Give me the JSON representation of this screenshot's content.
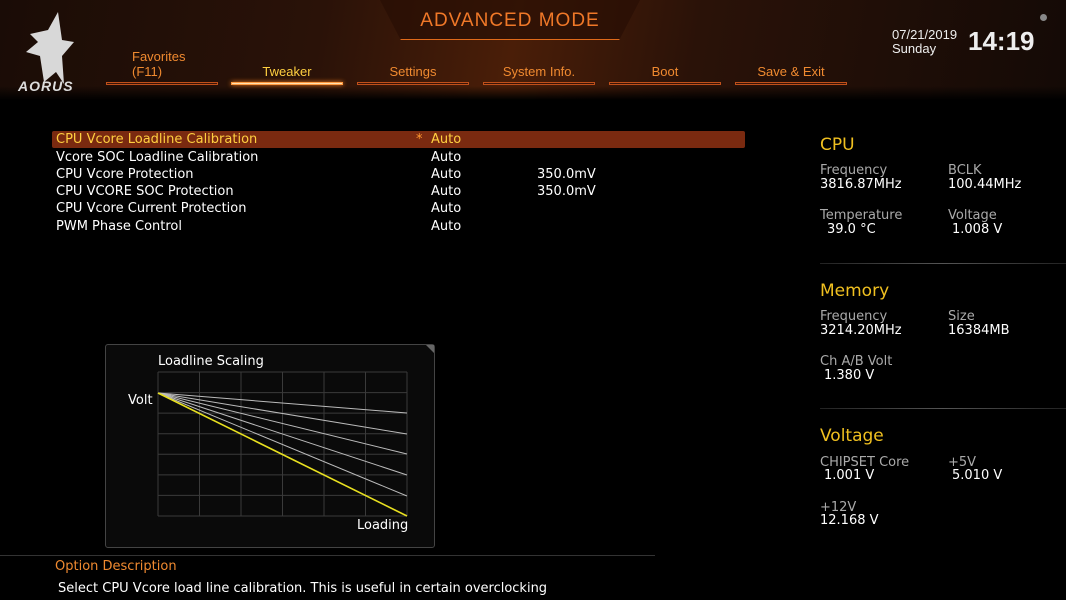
{
  "header": {
    "mode": "ADVANCED MODE",
    "logo": "AORUS",
    "date": "07/21/2019",
    "day": "Sunday",
    "time": "14:19"
  },
  "tabs": [
    {
      "label": "Favorites",
      "sub": "(F11)"
    },
    {
      "label": "Tweaker",
      "active": true
    },
    {
      "label": "Settings"
    },
    {
      "label": "System Info."
    },
    {
      "label": "Boot"
    },
    {
      "label": "Save & Exit"
    }
  ],
  "settings": [
    {
      "label": "CPU Vcore Loadline Calibration",
      "modified": "*",
      "value": "Auto",
      "extra": ""
    },
    {
      "label": "Vcore SOC Loadline Calibration",
      "modified": "",
      "value": "Auto",
      "extra": ""
    },
    {
      "label": "CPU Vcore Protection",
      "modified": "",
      "value": "Auto",
      "extra": "350.0mV"
    },
    {
      "label": "CPU VCORE SOC Protection",
      "modified": "",
      "value": "Auto",
      "extra": "350.0mV"
    },
    {
      "label": "CPU Vcore Current Protection",
      "modified": "",
      "value": "Auto",
      "extra": ""
    },
    {
      "label": "PWM Phase Control",
      "modified": "",
      "value": "Auto",
      "extra": ""
    }
  ],
  "graphic": {
    "title": "Loadline Scaling",
    "y_label": "Volt",
    "x_label": "Loading",
    "highlight_color": "#e8e020"
  },
  "monitor": {
    "cpu": {
      "title": "CPU",
      "frequency_label": "Frequency",
      "frequency": "3816.87MHz",
      "bclk_label": "BCLK",
      "bclk": "100.44MHz",
      "temperature_label": "Temperature",
      "temperature": "39.0 °C",
      "voltage_label": "Voltage",
      "voltage": "1.008 V"
    },
    "memory": {
      "title": "Memory",
      "frequency_label": "Frequency",
      "frequency": "3214.20MHz",
      "size_label": "Size",
      "size": "16384MB",
      "volt_label": "Ch A/B Volt",
      "volt": "1.380 V"
    },
    "voltage": {
      "title": "Voltage",
      "chipset_label": "CHIPSET Core",
      "chipset": "1.001 V",
      "v5_label": "+5V",
      "v5": "5.010 V",
      "v12_label": "+12V",
      "v12": "12.168 V"
    }
  },
  "description": {
    "title": "Option Description",
    "text": "Select CPU Vcore load line calibration. This is useful in certain overclocking"
  },
  "colors": {
    "accent": "#f08a30",
    "highlight": "#ffd040",
    "selected_row": "#7a2a10"
  }
}
